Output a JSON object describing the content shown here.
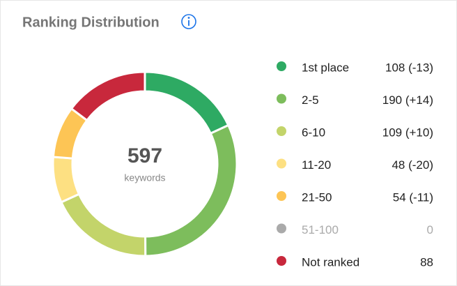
{
  "chart_data": {
    "type": "donut",
    "title": "Ranking Distribution",
    "categories": [
      "1st place",
      "2-5",
      "6-10",
      "11-20",
      "21-50",
      "51-100",
      "Not ranked"
    ],
    "values": [
      108,
      190,
      109,
      48,
      54,
      0,
      88
    ],
    "value_labels": [
      "108 (-13)",
      "190 (+14)",
      "109 (+10)",
      "48 (-20)",
      "54 (-11)",
      "0",
      "88"
    ],
    "colors": [
      "#2eaa63",
      "#7dbd5c",
      "#c3d46a",
      "#fde082",
      "#fdc555",
      "#aaaaaa",
      "#c8283c"
    ],
    "total": 597,
    "total_label": "keywords"
  }
}
